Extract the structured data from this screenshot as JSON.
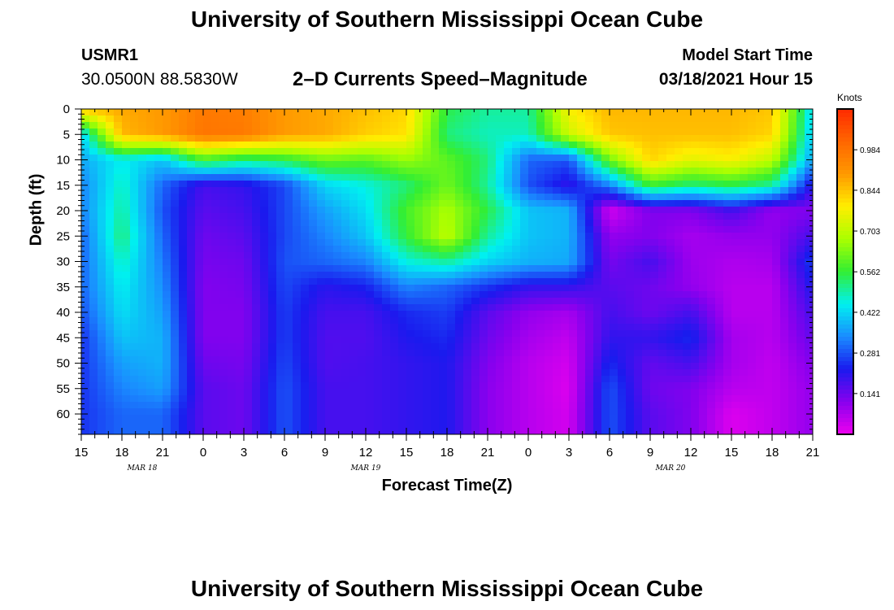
{
  "header": {
    "title": "University of Southern Mississippi Ocean Cube",
    "station_id": "USMR1",
    "station_position": "30.0500N 88.5830W",
    "product": "2–D Currents Speed–Magnitude",
    "model_start_label": "Model Start Time",
    "model_start_value": "03/18/2021 Hour 15"
  },
  "footer": {
    "title": "University of Southern Mississippi Ocean Cube"
  },
  "colors": {
    "scale": [
      "#ee00ee",
      "#8800ee",
      "#1a1aee",
      "#1a8cff",
      "#00f0f0",
      "#33ee33",
      "#aaff00",
      "#ffee00",
      "#ff9900",
      "#ff6600",
      "#ff2a00"
    ]
  },
  "chart_data": {
    "type": "heatmap",
    "title": "2–D Currents Speed–Magnitude",
    "xlabel": "Forecast Time(Z)",
    "ylabel": "Depth (ft)",
    "x_range_hours": [
      0,
      54
    ],
    "x_ticks": [
      "15",
      "18",
      "21",
      "0",
      "3",
      "6",
      "9",
      "12",
      "15",
      "18",
      "21",
      "0",
      "3",
      "6",
      "9",
      "12",
      "15",
      "18",
      "21"
    ],
    "date_labels": [
      {
        "text": "MAR 18",
        "hour": 4.5
      },
      {
        "text": "MAR 19",
        "hour": 21
      },
      {
        "text": "MAR 20",
        "hour": 43.5
      }
    ],
    "y_range_ft": [
      0,
      64
    ],
    "y_ticks": [
      0,
      5,
      10,
      15,
      20,
      25,
      30,
      35,
      40,
      45,
      50,
      55,
      60
    ],
    "colorbar": {
      "units": "Knots",
      "range": [
        0,
        1.125
      ],
      "tick_labels": [
        "0.984",
        "0.844",
        "0.703",
        "0.562",
        "0.422",
        "0.281",
        "0.141"
      ],
      "tick_values": [
        0.984,
        0.844,
        0.703,
        0.562,
        0.422,
        0.281,
        0.141
      ]
    },
    "grid_hours": [
      0,
      3,
      6,
      9,
      12,
      15,
      18,
      21,
      24,
      27,
      30,
      33,
      36,
      39,
      42,
      45,
      48,
      51,
      54
    ],
    "grid_depths_ft": [
      0,
      5,
      10,
      15,
      20,
      25,
      30,
      35,
      40,
      45,
      50,
      55,
      60,
      64
    ],
    "speed_knots": [
      [
        0.85,
        0.41,
        0.37,
        0.33,
        0.33,
        0.3,
        0.3,
        0.3,
        0.28,
        0.25,
        0.25,
        0.25,
        0.25,
        0.25
      ],
      [
        0.88,
        0.86,
        0.45,
        0.48,
        0.5,
        0.52,
        0.48,
        0.45,
        0.43,
        0.4,
        0.36,
        0.33,
        0.3,
        0.3
      ],
      [
        0.9,
        0.9,
        0.4,
        0.3,
        0.28,
        0.3,
        0.32,
        0.34,
        0.36,
        0.38,
        0.38,
        0.36,
        0.3,
        0.3
      ],
      [
        0.97,
        0.98,
        0.58,
        0.18,
        0.16,
        0.14,
        0.13,
        0.12,
        0.12,
        0.12,
        0.14,
        0.16,
        0.16,
        0.16
      ],
      [
        0.96,
        0.97,
        0.52,
        0.2,
        0.18,
        0.16,
        0.14,
        0.13,
        0.12,
        0.12,
        0.13,
        0.14,
        0.14,
        0.14
      ],
      [
        0.9,
        0.9,
        0.55,
        0.27,
        0.27,
        0.27,
        0.28,
        0.27,
        0.26,
        0.26,
        0.27,
        0.28,
        0.28,
        0.28
      ],
      [
        0.88,
        0.88,
        0.62,
        0.42,
        0.36,
        0.33,
        0.3,
        0.21,
        0.18,
        0.17,
        0.17,
        0.18,
        0.18,
        0.18
      ],
      [
        0.85,
        0.83,
        0.6,
        0.46,
        0.43,
        0.4,
        0.33,
        0.23,
        0.18,
        0.17,
        0.18,
        0.18,
        0.18,
        0.18
      ],
      [
        0.82,
        0.8,
        0.66,
        0.52,
        0.58,
        0.56,
        0.46,
        0.33,
        0.24,
        0.22,
        0.2,
        0.2,
        0.2,
        0.2
      ],
      [
        0.55,
        0.52,
        0.6,
        0.62,
        0.68,
        0.7,
        0.5,
        0.3,
        0.26,
        0.24,
        0.22,
        0.22,
        0.22,
        0.22
      ],
      [
        0.5,
        0.48,
        0.52,
        0.5,
        0.55,
        0.5,
        0.42,
        0.25,
        0.16,
        0.14,
        0.12,
        0.11,
        0.11,
        0.11
      ],
      [
        0.5,
        0.48,
        0.3,
        0.28,
        0.4,
        0.4,
        0.38,
        0.2,
        0.1,
        0.08,
        0.06,
        0.06,
        0.06,
        0.06
      ],
      [
        0.78,
        0.72,
        0.28,
        0.2,
        0.38,
        0.38,
        0.37,
        0.2,
        0.08,
        0.05,
        0.03,
        0.02,
        0.03,
        0.03
      ],
      [
        0.86,
        0.84,
        0.62,
        0.33,
        0.03,
        0.1,
        0.13,
        0.16,
        0.18,
        0.2,
        0.24,
        0.28,
        0.28,
        0.28
      ],
      [
        0.86,
        0.85,
        0.82,
        0.57,
        0.12,
        0.12,
        0.18,
        0.14,
        0.14,
        0.2,
        0.15,
        0.14,
        0.16,
        0.16
      ],
      [
        0.86,
        0.85,
        0.75,
        0.52,
        0.12,
        0.08,
        0.09,
        0.1,
        0.18,
        0.24,
        0.18,
        0.12,
        0.12,
        0.12
      ],
      [
        0.86,
        0.85,
        0.78,
        0.55,
        0.18,
        0.1,
        0.07,
        0.06,
        0.06,
        0.08,
        0.08,
        0.06,
        0.02,
        0.02
      ],
      [
        0.84,
        0.82,
        0.7,
        0.5,
        0.1,
        0.1,
        0.08,
        0.06,
        0.06,
        0.06,
        0.05,
        0.05,
        0.05,
        0.05
      ],
      [
        0.42,
        0.4,
        0.36,
        0.2,
        0.12,
        0.18,
        0.26,
        0.22,
        0.18,
        0.15,
        0.12,
        0.1,
        0.1,
        0.1
      ]
    ]
  }
}
